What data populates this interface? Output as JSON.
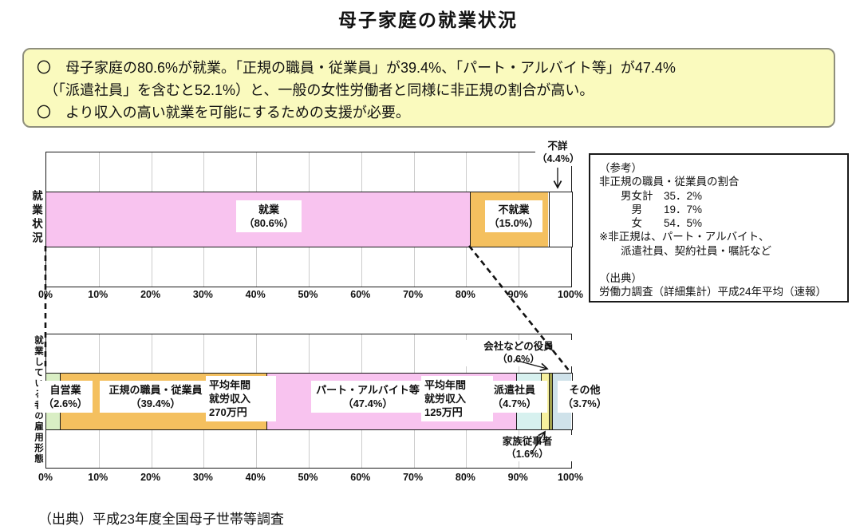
{
  "title": "母子家庭の就業状況",
  "summary_box": {
    "lines": [
      "〇　母子家庭の80.6%が就業。「正規の職員・従業員」が39.4%、「パート・アルバイト等」が47.4%",
      "　（「派遣社員」を含むと52.1%）と、一般の女性労働者と同様に非正規の割合が高い。",
      "〇　より収入の高い就業を可能にするための支援が必要。"
    ]
  },
  "chart_data": [
    {
      "type": "bar",
      "subtype": "horizontal_stacked",
      "title": "",
      "ylabel": "就業状況",
      "xlabel": "",
      "xlim": [
        0,
        100
      ],
      "grid": true,
      "x_ticks": [
        "0%",
        "10%",
        "20%",
        "30%",
        "40%",
        "50%",
        "60%",
        "70%",
        "80%",
        "90%",
        "100%"
      ],
      "segments": [
        {
          "name": "就業",
          "value": 80.6,
          "color": "#f8c3ef",
          "label_lines": [
            "就業",
            "（80.6%）"
          ]
        },
        {
          "name": "不就業",
          "value": 15.0,
          "color": "#f4c05f",
          "label_lines": [
            "不就業",
            "（15.0%）"
          ]
        },
        {
          "name": "不詳",
          "value": 4.4,
          "color": "#ffffff",
          "label_lines": [
            "不詳",
            "（4.4%）"
          ]
        }
      ]
    },
    {
      "type": "bar",
      "subtype": "horizontal_stacked",
      "title": "",
      "ylabel": "就業している者の雇用形態",
      "xlabel": "",
      "xlim": [
        0,
        100
      ],
      "grid": true,
      "x_ticks": [
        "0%",
        "10%",
        "20%",
        "30%",
        "40%",
        "50%",
        "60%",
        "70%",
        "80%",
        "90%",
        "100%"
      ],
      "segments": [
        {
          "name": "自営業",
          "value": 2.6,
          "color": "#d9eec4",
          "label_lines": [
            "自営業",
            "（2.6%）"
          ]
        },
        {
          "name": "正規の職員・従業員",
          "value": 39.4,
          "color": "#f4c05f",
          "label_lines": [
            "正規の職員・従業員",
            "（39.4%）"
          ]
        },
        {
          "name": "パート・アルバイト等",
          "value": 47.4,
          "color": "#f8c3ef",
          "label_lines": [
            "パート・アルバイト等",
            "（47.4%）"
          ]
        },
        {
          "name": "派遣社員",
          "value": 4.7,
          "color": "#d7f1ef",
          "label_lines": [
            "派遣社員",
            "（4.7%）"
          ]
        },
        {
          "name": "家族従事者",
          "value": 1.6,
          "color": "#f6f09e",
          "label_lines": [
            "家族従事者",
            "（1.6%）"
          ]
        },
        {
          "name": "会社などの役員",
          "value": 0.6,
          "color": "#a3a34f",
          "label_lines": [
            "会社などの役員",
            "（0.6%）"
          ]
        },
        {
          "name": "その他",
          "value": 3.7,
          "color": "#cfe2ea",
          "label_lines": [
            "その他",
            "（3.7%）"
          ]
        }
      ],
      "notes": [
        {
          "attached_to": "正規の職員・従業員",
          "lines": [
            "平均年間",
            "就労収入",
            "270万円"
          ]
        },
        {
          "attached_to": "パート・アルバイト等",
          "lines": [
            "平均年間",
            "就労収入",
            "125万円"
          ]
        }
      ]
    }
  ],
  "ref_box": {
    "lines": [
      "（参考）",
      "非正規の職員・従業員の割合",
      "　　男女計　35．2%",
      "　　　男　　19．7%",
      "　　　女　　54．5%",
      "※非正規は、パート・アルバイト、",
      "　　派遣社員、契約社員・嘱託など",
      "",
      "（出典）",
      "労働力調査（詳細集計）平成24年平均（速報）"
    ]
  },
  "source": "（出典）平成23年度全国母子世帯等調査"
}
